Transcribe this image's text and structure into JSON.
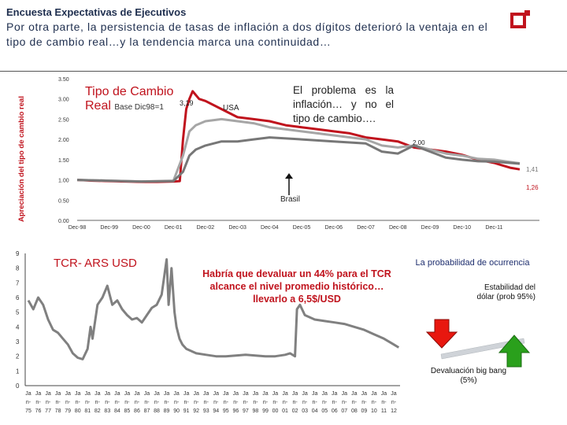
{
  "header": {
    "title": "Encuesta Expectativas de Ejecutivos",
    "subtitle": "Por otra parte, la persistencia de tasas de inflación a dos dígitos deterioró la ventaja en el tipo de cambio real…y la tendencia marca una continuidad…"
  },
  "top_chart": {
    "ylabel": "Apreciación del tipo de cambio real",
    "title_main": "Tipo de Cambio",
    "title_sub_big": "Real",
    "title_sub_small": "Base Dic98=1",
    "annotation_peak": "3,19",
    "annotation_usa": "USA",
    "annotation_brasil": "Brasil",
    "label_200": "2,00",
    "label_141": "1,41",
    "label_126": "1,26",
    "callout": "El problema es la inflación… y no el tipo de cambio…."
  },
  "bottom_chart": {
    "title": "TCR- ARS USD",
    "callout": "Habría que devaluar un 44% para el TCR alcance el nivel promedio histórico…llevarlo a 6,5$/USD"
  },
  "probability": {
    "title": "La probabilidad de ocurrencia",
    "stability": "Estabilidad del dólar (prob 95%)",
    "devaluation": "Devaluación big bang (5%)"
  },
  "colors": {
    "argentina": "#c0131d",
    "usa": "#a6a6a6",
    "brasil": "#777777",
    "tcr": "#808080",
    "down_arrow": "#e8170f",
    "up_arrow": "#2aa01c"
  },
  "chart_data": [
    {
      "type": "line",
      "title": "Tipo de Cambio Real",
      "x_labels": [
        "Dec-98",
        "Dec-99",
        "Dec-00",
        "Dec-01",
        "Dec-02",
        "Dec-03",
        "Dec-04",
        "Dec-05",
        "Dec-06",
        "Dec-07",
        "Dec-08",
        "Dec-09",
        "Dec-10",
        "Dec-11"
      ],
      "y_ticks": [
        "0.00",
        "0.50",
        "1.00",
        "1.50",
        "2.00",
        "2.50",
        "3.00",
        "3.50"
      ],
      "ylim": [
        0,
        3.5
      ],
      "series": [
        {
          "name": "",
          "color": "argentina",
          "points": [
            [
              0,
              1.0
            ],
            [
              0.5,
              0.98
            ],
            [
              1,
              0.97
            ],
            [
              1.5,
              0.96
            ],
            [
              2,
              0.95
            ],
            [
              2.5,
              0.95
            ],
            [
              3,
              0.96
            ],
            [
              3.2,
              0.97
            ],
            [
              3.3,
              2.0
            ],
            [
              3.4,
              2.75
            ],
            [
              3.5,
              3.0
            ],
            [
              3.6,
              3.19
            ],
            [
              3.8,
              3.0
            ],
            [
              4,
              2.95
            ],
            [
              4.5,
              2.75
            ],
            [
              5,
              2.55
            ],
            [
              5.5,
              2.5
            ],
            [
              6,
              2.45
            ],
            [
              6.5,
              2.35
            ],
            [
              7,
              2.3
            ],
            [
              7.5,
              2.25
            ],
            [
              8,
              2.2
            ],
            [
              8.5,
              2.15
            ],
            [
              9,
              2.05
            ],
            [
              9.5,
              2.0
            ],
            [
              10,
              1.95
            ],
            [
              10.5,
              1.8
            ],
            [
              11,
              1.75
            ],
            [
              11.5,
              1.7
            ],
            [
              12,
              1.62
            ],
            [
              12.5,
              1.5
            ],
            [
              13,
              1.42
            ],
            [
              13.5,
              1.3
            ],
            [
              13.8,
              1.26
            ]
          ]
        },
        {
          "name": "USA",
          "color": "usa",
          "points": [
            [
              0,
              1.0
            ],
            [
              1,
              0.98
            ],
            [
              2,
              0.96
            ],
            [
              3,
              0.98
            ],
            [
              3.3,
              1.6
            ],
            [
              3.5,
              2.2
            ],
            [
              3.7,
              2.35
            ],
            [
              4,
              2.45
            ],
            [
              4.5,
              2.5
            ],
            [
              5,
              2.45
            ],
            [
              5.5,
              2.4
            ],
            [
              6,
              2.3
            ],
            [
              7,
              2.2
            ],
            [
              8,
              2.1
            ],
            [
              9,
              2.0
            ],
            [
              9.5,
              1.85
            ],
            [
              10,
              1.8
            ],
            [
              10.5,
              1.85
            ],
            [
              11,
              1.75
            ],
            [
              11.5,
              1.65
            ],
            [
              12,
              1.6
            ],
            [
              12.5,
              1.52
            ],
            [
              13,
              1.5
            ],
            [
              13.5,
              1.44
            ],
            [
              13.8,
              1.41
            ]
          ]
        },
        {
          "name": "Brasil",
          "color": "brasil",
          "points": [
            [
              0,
              1.0
            ],
            [
              1,
              0.98
            ],
            [
              2,
              0.96
            ],
            [
              3,
              0.97
            ],
            [
              3.3,
              1.2
            ],
            [
              3.5,
              1.6
            ],
            [
              3.7,
              1.75
            ],
            [
              4,
              1.85
            ],
            [
              4.5,
              1.95
            ],
            [
              5,
              1.95
            ],
            [
              5.5,
              2.0
            ],
            [
              6,
              2.05
            ],
            [
              7,
              2.0
            ],
            [
              8,
              1.95
            ],
            [
              9,
              1.9
            ],
            [
              9.5,
              1.7
            ],
            [
              10,
              1.65
            ],
            [
              10.5,
              1.85
            ],
            [
              11,
              1.7
            ],
            [
              11.5,
              1.55
            ],
            [
              12,
              1.5
            ],
            [
              12.5,
              1.46
            ],
            [
              13,
              1.45
            ],
            [
              13.5,
              1.42
            ],
            [
              13.8,
              1.4
            ]
          ]
        }
      ]
    },
    {
      "type": "line",
      "title": "TCR- ARS USD",
      "x_labels": [
        "75",
        "76",
        "77",
        "78",
        "79",
        "80",
        "81",
        "82",
        "83",
        "84",
        "85",
        "86",
        "87",
        "88",
        "89",
        "90",
        "91",
        "92",
        "93",
        "94",
        "95",
        "96",
        "97",
        "98",
        "99",
        "00",
        "01",
        "02",
        "03",
        "04",
        "05",
        "06",
        "07",
        "08",
        "09",
        "10",
        "11",
        "12"
      ],
      "x_prefix": "Ja",
      "x_prefix2": "n-",
      "y_ticks": [
        "0",
        "1",
        "2",
        "3",
        "4",
        "5",
        "6",
        "7",
        "8",
        "9"
      ],
      "ylim": [
        0,
        9
      ],
      "series": [
        {
          "name": "",
          "color": "tcr",
          "points": [
            [
              0,
              5.8
            ],
            [
              0.5,
              5.2
            ],
            [
              1,
              6.0
            ],
            [
              1.5,
              5.5
            ],
            [
              2,
              4.5
            ],
            [
              2.5,
              3.8
            ],
            [
              3,
              3.6
            ],
            [
              3.5,
              3.2
            ],
            [
              4,
              2.8
            ],
            [
              4.5,
              2.2
            ],
            [
              5,
              1.9
            ],
            [
              5.5,
              1.8
            ],
            [
              6,
              2.5
            ],
            [
              6.3,
              4.0
            ],
            [
              6.5,
              3.2
            ],
            [
              7,
              5.5
            ],
            [
              7.5,
              6.0
            ],
            [
              8,
              6.8
            ],
            [
              8.5,
              5.5
            ],
            [
              9,
              5.8
            ],
            [
              9.5,
              5.2
            ],
            [
              10,
              4.8
            ],
            [
              10.5,
              4.5
            ],
            [
              11,
              4.6
            ],
            [
              11.5,
              4.3
            ],
            [
              12,
              4.8
            ],
            [
              12.5,
              5.3
            ],
            [
              13,
              5.5
            ],
            [
              13.5,
              6.2
            ],
            [
              14,
              8.6
            ],
            [
              14.2,
              5.5
            ],
            [
              14.5,
              8.0
            ],
            [
              14.8,
              5.0
            ],
            [
              15,
              4.0
            ],
            [
              15.3,
              3.2
            ],
            [
              15.6,
              2.8
            ],
            [
              16,
              2.5
            ],
            [
              17,
              2.2
            ],
            [
              18,
              2.1
            ],
            [
              19,
              2.0
            ],
            [
              20,
              2.0
            ],
            [
              21,
              2.05
            ],
            [
              22,
              2.1
            ],
            [
              23,
              2.05
            ],
            [
              24,
              2.0
            ],
            [
              25,
              2.0
            ],
            [
              26,
              2.1
            ],
            [
              26.5,
              2.2
            ],
            [
              27,
              2.0
            ],
            [
              27.2,
              5.2
            ],
            [
              27.5,
              5.5
            ],
            [
              28,
              4.8
            ],
            [
              29,
              4.5
            ],
            [
              30,
              4.4
            ],
            [
              31,
              4.3
            ],
            [
              32,
              4.2
            ],
            [
              33,
              4.0
            ],
            [
              34,
              3.8
            ],
            [
              35,
              3.5
            ],
            [
              36,
              3.2
            ],
            [
              37,
              2.8
            ],
            [
              37.5,
              2.6
            ]
          ]
        }
      ]
    }
  ]
}
